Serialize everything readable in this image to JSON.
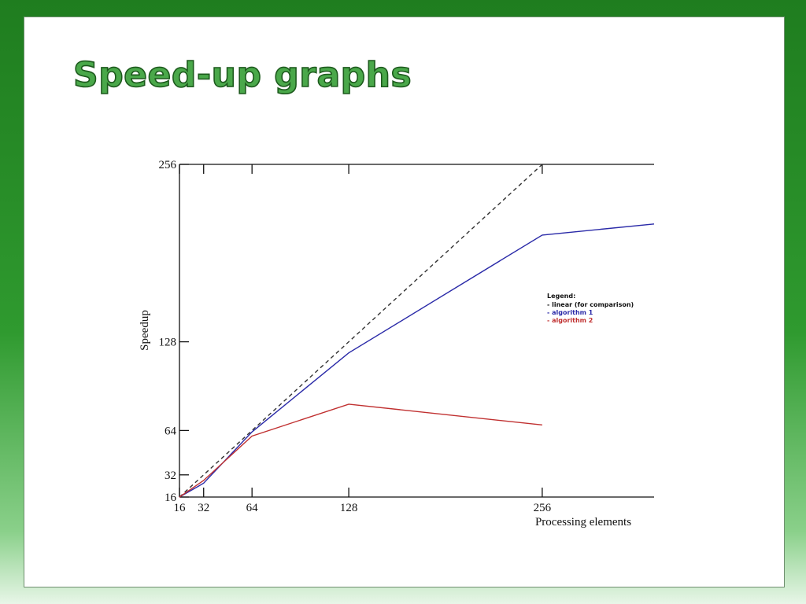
{
  "slide": {
    "title": "Speed-up graphs"
  },
  "chart_data": {
    "type": "line",
    "title": "",
    "xlabel": "Processing elements",
    "ylabel": "Speedup",
    "xlim": [
      16,
      330
    ],
    "ylim": [
      16,
      256
    ],
    "x_ticks": [
      16,
      32,
      64,
      128,
      256
    ],
    "y_ticks": [
      16,
      32,
      64,
      128,
      256
    ],
    "grid": false,
    "legend": {
      "title": "Legend:",
      "placement": "right-middle",
      "entries": [
        "- linear (for comparison)",
        "- algorithm 1",
        "- algorithm 2"
      ]
    },
    "series": [
      {
        "name": "linear (for comparison)",
        "color": "#333333",
        "dashed": true,
        "x": [
          16,
          256
        ],
        "y": [
          16,
          256
        ]
      },
      {
        "name": "algorithm 1",
        "color": "#2a2aa8",
        "dashed": false,
        "x": [
          16,
          32,
          64,
          128,
          256,
          330
        ],
        "y": [
          16,
          26,
          63,
          120,
          205,
          213
        ]
      },
      {
        "name": "algorithm 2",
        "color": "#c03030",
        "dashed": false,
        "x": [
          16,
          32,
          64,
          128,
          256
        ],
        "y": [
          16,
          28,
          60,
          83,
          68
        ]
      }
    ],
    "legend_colors": [
      "#111111",
      "#2a2aa8",
      "#c03030"
    ]
  }
}
